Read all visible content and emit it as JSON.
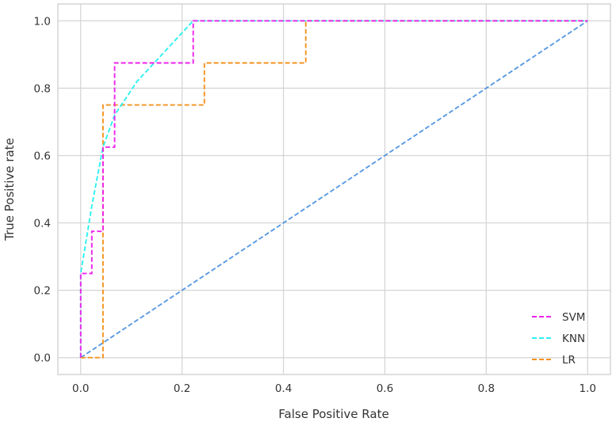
{
  "chart_data": {
    "type": "line",
    "title": "",
    "xlabel": "False Positive Rate",
    "ylabel": "True Positive rate",
    "xlim": [
      -0.045,
      1.045
    ],
    "ylim": [
      -0.05,
      1.05
    ],
    "x_ticks": [
      "0.0",
      "0.2",
      "0.4",
      "0.6",
      "0.8",
      "1.0"
    ],
    "y_ticks": [
      "0.0",
      "0.2",
      "0.4",
      "0.6",
      "0.8",
      "1.0"
    ],
    "grid": true,
    "legend_position": "lower-right",
    "series": [
      {
        "name": "SVM",
        "color": "#ee22ee",
        "line_style": "dashed",
        "x": [
          0.0,
          0.0,
          0.011,
          0.011,
          0.022,
          0.022,
          0.044,
          0.044,
          0.067,
          0.067,
          0.222,
          0.222,
          1.0
        ],
        "y": [
          0.0,
          0.25,
          0.25,
          0.25,
          0.25,
          0.375,
          0.375,
          0.625,
          0.625,
          0.875,
          0.875,
          1.0,
          1.0
        ]
      },
      {
        "name": "KNN",
        "color": "#2ef0f0",
        "line_style": "dashed",
        "x": [
          0.0,
          0.0,
          0.022,
          0.044,
          0.067,
          0.111,
          0.222,
          1.0
        ],
        "y": [
          0.0,
          0.25,
          0.45,
          0.625,
          0.72,
          0.82,
          1.0,
          1.0
        ]
      },
      {
        "name": "LR",
        "color": "#f5921e",
        "line_style": "dashed",
        "x": [
          0.0,
          0.044,
          0.044,
          0.244,
          0.244,
          0.444,
          0.444,
          1.0
        ],
        "y": [
          0.0,
          0.0,
          0.75,
          0.75,
          0.875,
          0.875,
          1.0,
          1.0
        ]
      },
      {
        "color": "#5a9ae2",
        "line_style": "dashed",
        "x": [
          0.0,
          1.0
        ],
        "y": [
          0.0,
          1.0
        ]
      }
    ]
  }
}
